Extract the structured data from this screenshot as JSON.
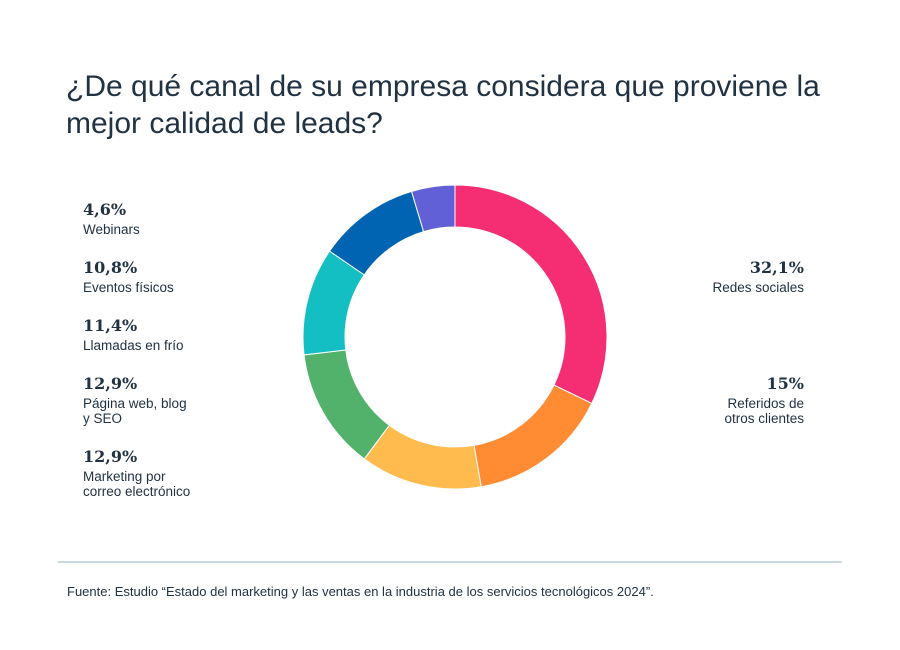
{
  "title": "¿De qué canal de su empresa considera que proviene la mejor calidad de leads?",
  "source": "Fuente: Estudio “Estado del marketing y las ventas en la industria de los servicios tecnológicos 2024”.",
  "chart_data": {
    "type": "pie",
    "donut": true,
    "title": "¿De qué canal de su empresa considera que proviene la mejor calidad de leads?",
    "slices": [
      {
        "label": "Redes sociales",
        "value": 32.1,
        "display": "32,1%",
        "color": "#f52d73"
      },
      {
        "label": "Referidos de\notros clientes",
        "value": 15,
        "display": "15%",
        "color": "#ff8b33"
      },
      {
        "label": "Marketing por\ncorreo electrónico",
        "value": 12.9,
        "display": "12,9%",
        "color": "#ffbb4d"
      },
      {
        "label": "Página web, blog\ny SEO",
        "value": 12.9,
        "display": "12,9%",
        "color": "#52b26b"
      },
      {
        "label": "Llamadas en frío",
        "value": 11.4,
        "display": "11,4%",
        "color": "#13bfc2"
      },
      {
        "label": "Eventos físicos",
        "value": 10.8,
        "display": "10,8%",
        "color": "#0064b3"
      },
      {
        "label": "Webinars",
        "value": 4.6,
        "display": "4,6%",
        "color": "#6160d6"
      }
    ]
  }
}
